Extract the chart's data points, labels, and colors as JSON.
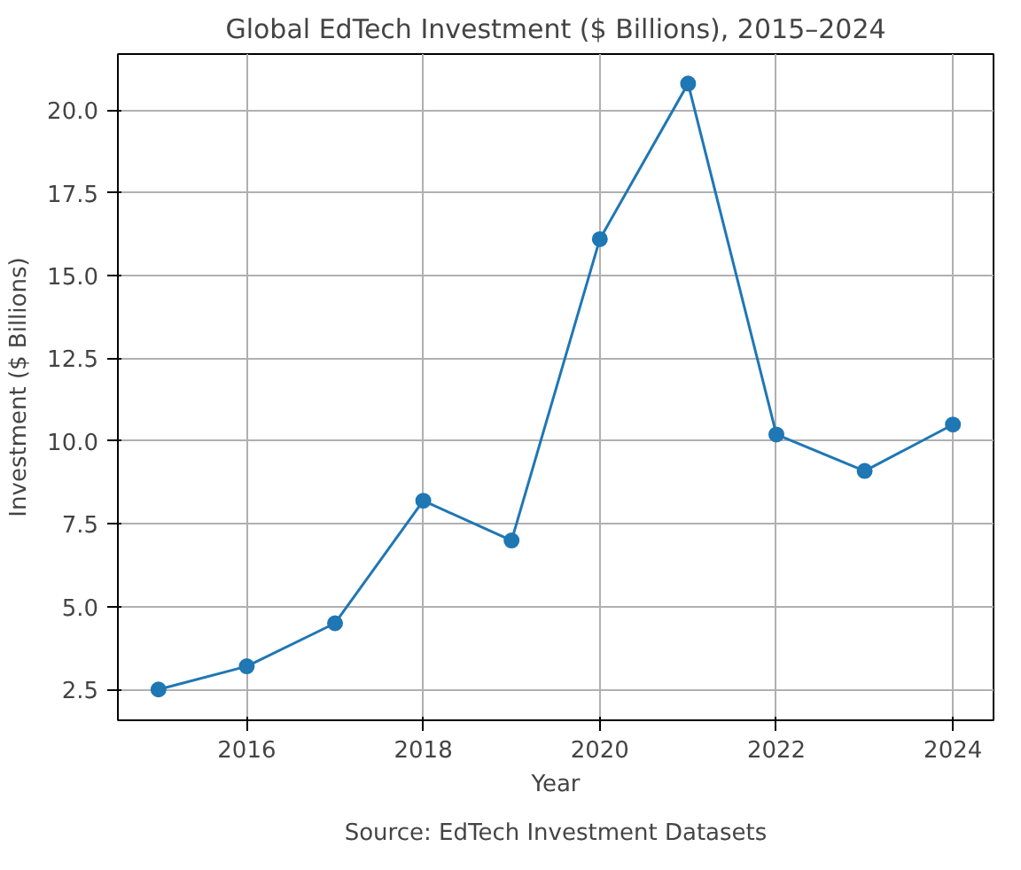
{
  "chart_data": {
    "type": "line",
    "title": "Global EdTech Investment ($ Billions), 2015–2024",
    "xlabel": "Year",
    "ylabel": "Investment ($ Billions)",
    "x": [
      2015,
      2016,
      2017,
      2018,
      2019,
      2020,
      2021,
      2022,
      2023,
      2024
    ],
    "series": [
      {
        "color": "#1f77b4",
        "values": [
          2.5,
          3.2,
          4.5,
          8.2,
          7.0,
          16.1,
          20.8,
          10.2,
          9.1,
          10.5
        ]
      }
    ],
    "xlim": [
      2014.54,
      2024.46
    ],
    "xticks": [
      2016,
      2018,
      2020,
      2022,
      2024
    ],
    "ylim": [
      1.57,
      21.69
    ],
    "yticks": [
      {
        "value": 2.5,
        "label": "2.5"
      },
      {
        "value": 5,
        "label": "5.0"
      },
      {
        "value": 7.5,
        "label": "7.5"
      },
      {
        "value": 10,
        "label": "10.0"
      },
      {
        "value": 12.5,
        "label": "12.5"
      },
      {
        "value": 15,
        "label": "15.0"
      },
      {
        "value": 17.5,
        "label": "17.5"
      },
      {
        "value": 20,
        "label": "20.0"
      }
    ],
    "grid": true,
    "marker": "circle",
    "line_style": "solid",
    "annotations": [
      "Source: EdTech Investment Datasets"
    ]
  }
}
